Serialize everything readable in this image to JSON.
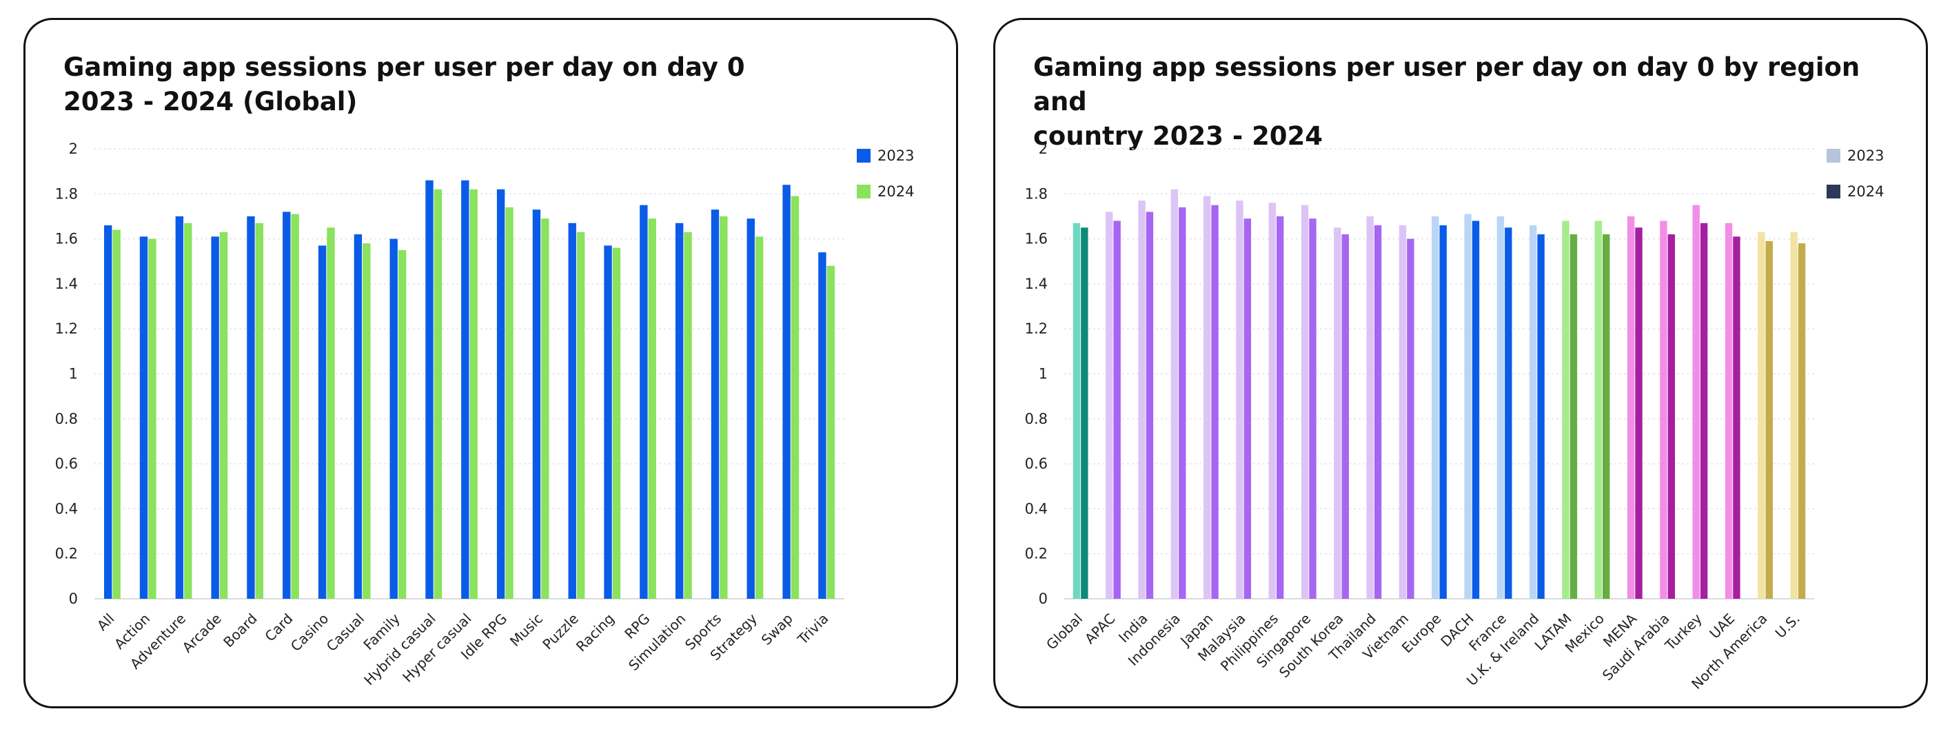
{
  "charts": [
    {
      "title_lines": [
        "Gaming app sessions per user per day on day 0",
        "2023 - 2024 (Global)"
      ]
    },
    {
      "title_lines": [
        "Gaming app sessions per user per day on day 0 by region and",
        "country 2023 - 2024"
      ]
    }
  ],
  "chart_data": [
    {
      "type": "bar",
      "title": "Gaming app sessions per user per day on day 0 2023 - 2024 (Global)",
      "xlabel": "",
      "ylabel": "",
      "ylim": [
        0,
        2
      ],
      "yticks": [
        "0",
        "0.2",
        "0.4",
        "0.6",
        "0.8",
        "1",
        "1.2",
        "1.4",
        "1.6",
        "1.8",
        "2"
      ],
      "grid": true,
      "legend_position": "top-right",
      "categories": [
        "All",
        "Action",
        "Adventure",
        "Arcade",
        "Board",
        "Card",
        "Casino",
        "Casual",
        "Family",
        "Hybrid casual",
        "Hyper casual",
        "Idle RPG",
        "Music",
        "Puzzle",
        "Racing",
        "RPG",
        "Simulation",
        "Sports",
        "Strategy",
        "Swap",
        "Trivia"
      ],
      "series": [
        {
          "name": "2023",
          "color": "#0a5ce8",
          "values": [
            1.66,
            1.61,
            1.7,
            1.61,
            1.7,
            1.72,
            1.57,
            1.62,
            1.6,
            1.86,
            1.86,
            1.82,
            1.73,
            1.67,
            1.57,
            1.75,
            1.67,
            1.73,
            1.69,
            1.84,
            1.54
          ]
        },
        {
          "name": "2024",
          "color": "#8ae25d",
          "values": [
            1.64,
            1.6,
            1.67,
            1.63,
            1.67,
            1.71,
            1.65,
            1.58,
            1.55,
            1.82,
            1.82,
            1.74,
            1.69,
            1.63,
            1.56,
            1.69,
            1.63,
            1.7,
            1.61,
            1.79,
            1.48
          ]
        }
      ]
    },
    {
      "type": "bar",
      "title": "Gaming app sessions per user per day on day 0 by region and country 2023 - 2024",
      "xlabel": "",
      "ylabel": "",
      "ylim": [
        0,
        2
      ],
      "yticks": [
        "0",
        "0.2",
        "0.4",
        "0.6",
        "0.8",
        "1",
        "1.2",
        "1.4",
        "1.6",
        "1.8",
        "2"
      ],
      "grid": true,
      "legend_position": "top-right",
      "legend_colors": [
        "#b8c4de",
        "#2b3a58"
      ],
      "categories": [
        "Global",
        "APAC",
        "India",
        "Indonesia",
        "Japan",
        "Malaysia",
        "Philippines",
        "Singapore",
        "South Korea",
        "Thailand",
        "Vietnam",
        "Europe",
        "DACH",
        "France",
        "U.K. & Ireland",
        "LATAM",
        "Mexico",
        "MENA",
        "Saudi Arabia",
        "Turkey",
        "UAE",
        "North America",
        "U.S."
      ],
      "bar_colors_2023": [
        "#6fd8c2",
        "#dcc4f6",
        "#dcc4f6",
        "#dcc4f6",
        "#dcc4f6",
        "#dcc4f6",
        "#dcc4f6",
        "#dcc4f6",
        "#dcc4f6",
        "#dcc4f6",
        "#dcc4f6",
        "#b9d6f6",
        "#b9d6f6",
        "#b9d6f6",
        "#b9d6f6",
        "#a4ec8c",
        "#a4ec8c",
        "#f28ee6",
        "#f28ee6",
        "#f28ee6",
        "#f28ee6",
        "#f2e3a0",
        "#f2e3a0"
      ],
      "bar_colors_2024": [
        "#0d8a78",
        "#a766f2",
        "#a766f2",
        "#a766f2",
        "#a766f2",
        "#a766f2",
        "#a766f2",
        "#a766f2",
        "#a766f2",
        "#a766f2",
        "#a766f2",
        "#0a5ce8",
        "#0a5ce8",
        "#0a5ce8",
        "#0a5ce8",
        "#66ad42",
        "#66ad42",
        "#a61fa1",
        "#a61fa1",
        "#a61fa1",
        "#a61fa1",
        "#c3ac4a",
        "#c3ac4a"
      ],
      "series": [
        {
          "name": "2023",
          "values": [
            1.67,
            1.72,
            1.77,
            1.82,
            1.79,
            1.77,
            1.76,
            1.75,
            1.65,
            1.7,
            1.66,
            1.7,
            1.71,
            1.7,
            1.66,
            1.68,
            1.68,
            1.7,
            1.68,
            1.75,
            1.67,
            1.63,
            1.63
          ]
        },
        {
          "name": "2024",
          "values": [
            1.65,
            1.68,
            1.72,
            1.74,
            1.75,
            1.69,
            1.7,
            1.69,
            1.62,
            1.66,
            1.6,
            1.66,
            1.68,
            1.65,
            1.62,
            1.62,
            1.62,
            1.65,
            1.62,
            1.67,
            1.61,
            1.59,
            1.58
          ]
        }
      ]
    }
  ]
}
